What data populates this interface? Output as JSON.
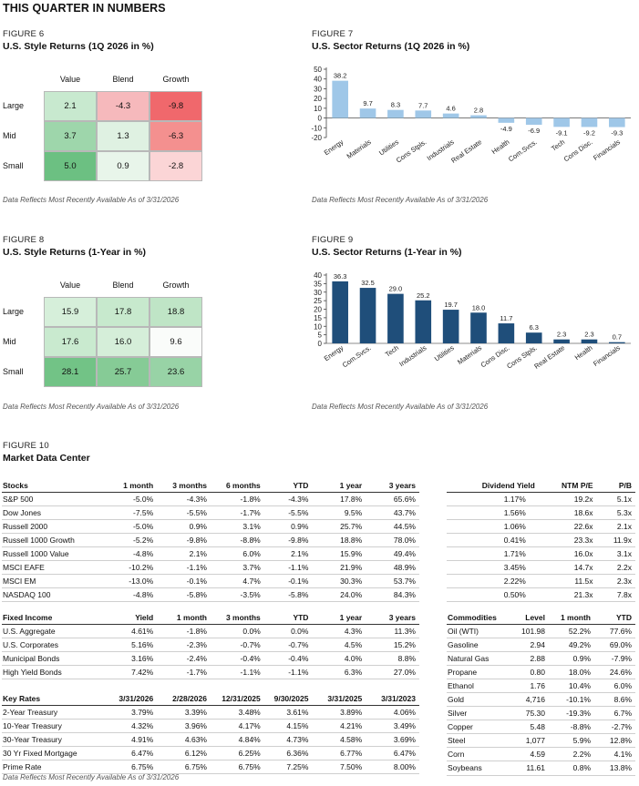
{
  "page_title": "THIS QUARTER IN NUMBERS",
  "source_note": "Data Reflects Most Recently Available As of 3/31/2026",
  "fig6": {
    "label": "FIGURE 6",
    "title": "U.S. Style Returns (1Q 2026 in %)",
    "cols": [
      "Value",
      "Blend",
      "Growth"
    ],
    "rows": [
      "Large",
      "Mid",
      "Small"
    ],
    "cells": [
      [
        "2.1",
        "-4.3",
        "-9.8"
      ],
      [
        "3.7",
        "1.3",
        "-6.3"
      ],
      [
        "5.0",
        "0.9",
        "-2.8"
      ]
    ],
    "colors": [
      [
        "#c8e9cf",
        "#f6b9bc",
        "#f0686c"
      ],
      [
        "#9ed6ab",
        "#dff1e2",
        "#f4908f"
      ],
      [
        "#6cc082",
        "#e8f5ea",
        "#fbd5d6"
      ]
    ]
  },
  "fig8": {
    "label": "FIGURE 8",
    "title": "U.S. Style Returns (1-Year in %)",
    "cols": [
      "Value",
      "Blend",
      "Growth"
    ],
    "rows": [
      "Large",
      "Mid",
      "Small"
    ],
    "cells": [
      [
        "15.9",
        "17.8",
        "18.8"
      ],
      [
        "17.6",
        "16.0",
        "9.6"
      ],
      [
        "28.1",
        "25.7",
        "23.6"
      ]
    ],
    "colors": [
      [
        "#d6efda",
        "#c7e9cd",
        "#bfe5c6"
      ],
      [
        "#c9eacf",
        "#d5eed9",
        "#fafcfa"
      ],
      [
        "#72c386",
        "#86cb96",
        "#98d3a6"
      ]
    ]
  },
  "fig7": {
    "label": "FIGURE 7",
    "title": "U.S. Sector Returns (1Q 2026 in %)",
    "color": "#9fc7e8",
    "chart_data": {
      "type": "bar",
      "categories": [
        "Energy",
        "Materials",
        "Utilities",
        "Cons Stpls.",
        "Industrials",
        "Real Estate",
        "Health",
        "Com.Svcs.",
        "Tech",
        "Cons Disc.",
        "Financials"
      ],
      "values": [
        38.2,
        9.7,
        8.3,
        7.7,
        4.6,
        2.8,
        -4.9,
        -6.9,
        -9.1,
        -9.2,
        -9.3
      ],
      "labels": [
        "38.2",
        "9.7",
        "8.3",
        "7.7",
        "4.6",
        "2.8",
        "-4.9",
        "-6.9",
        "-9.1",
        "-9.2",
        "-9.3"
      ],
      "yticks": [
        "50",
        "40",
        "30",
        "20",
        "10",
        "0",
        "-10",
        "-20"
      ],
      "ylim": [
        -20,
        50
      ]
    }
  },
  "fig9": {
    "label": "FIGURE 9",
    "title": "U.S. Sector Returns (1-Year in %)",
    "color": "#1f4e7a",
    "chart_data": {
      "type": "bar",
      "categories": [
        "Energy",
        "Com.Svcs.",
        "Tech",
        "Industrials",
        "Utilities",
        "Materials",
        "Cons Disc.",
        "Cons Stpls.",
        "Real Estate",
        "Health",
        "Financials"
      ],
      "values": [
        36.3,
        32.5,
        29.0,
        25.2,
        19.7,
        18.0,
        11.7,
        6.3,
        2.3,
        2.3,
        0.7
      ],
      "labels": [
        "36.3",
        "32.5",
        "29.0",
        "25.2",
        "19.7",
        "18.0",
        "11.7",
        "6.3",
        "2.3",
        "2.3",
        "0.7"
      ],
      "yticks": [
        "40",
        "35",
        "30",
        "25",
        "20",
        "15",
        "10",
        "5",
        "0"
      ],
      "ylim": [
        0,
        40
      ]
    }
  },
  "fig10": {
    "label": "FIGURE 10",
    "title": "Market Data Center"
  },
  "stocks": {
    "headers": [
      "Stocks",
      "1 month",
      "3 months",
      "6 months",
      "YTD",
      "1 year",
      "3 years"
    ],
    "rows": [
      [
        "S&P 500",
        "-5.0%",
        "-4.3%",
        "-1.8%",
        "-4.3%",
        "17.8%",
        "65.6%"
      ],
      [
        "Dow Jones",
        "-7.5%",
        "-5.5%",
        "-1.7%",
        "-5.5%",
        "9.5%",
        "43.7%"
      ],
      [
        "Russell 2000",
        "-5.0%",
        "0.9%",
        "3.1%",
        "0.9%",
        "25.7%",
        "44.5%"
      ],
      [
        "Russell 1000 Growth",
        "-5.2%",
        "-9.8%",
        "-8.8%",
        "-9.8%",
        "18.8%",
        "78.0%"
      ],
      [
        "Russell 1000 Value",
        "-4.8%",
        "2.1%",
        "6.0%",
        "2.1%",
        "15.9%",
        "49.4%"
      ],
      [
        "MSCI EAFE",
        "-10.2%",
        "-1.1%",
        "3.7%",
        "-1.1%",
        "21.9%",
        "48.9%"
      ],
      [
        "MSCI EM",
        "-13.0%",
        "-0.1%",
        "4.7%",
        "-0.1%",
        "30.3%",
        "53.7%"
      ],
      [
        "NASDAQ 100",
        "-4.8%",
        "-5.8%",
        "-3.5%",
        "-5.8%",
        "24.0%",
        "84.3%"
      ]
    ]
  },
  "valuation": {
    "headers": [
      "Dividend Yield",
      "NTM P/E",
      "P/B"
    ],
    "rows": [
      [
        "1.17%",
        "19.2x",
        "5.1x"
      ],
      [
        "1.56%",
        "18.6x",
        "5.3x"
      ],
      [
        "1.06%",
        "22.6x",
        "2.1x"
      ],
      [
        "0.41%",
        "23.3x",
        "11.9x"
      ],
      [
        "1.71%",
        "16.0x",
        "3.1x"
      ],
      [
        "3.45%",
        "14.7x",
        "2.2x"
      ],
      [
        "2.22%",
        "11.5x",
        "2.3x"
      ],
      [
        "0.50%",
        "21.3x",
        "7.8x"
      ]
    ]
  },
  "fixed_income": {
    "headers": [
      "Fixed Income",
      "Yield",
      "1 month",
      "3 months",
      "YTD",
      "1 year",
      "3 years"
    ],
    "rows": [
      [
        "U.S. Aggregate",
        "4.61%",
        "-1.8%",
        "0.0%",
        "0.0%",
        "4.3%",
        "11.3%"
      ],
      [
        "U.S. Corporates",
        "5.16%",
        "-2.3%",
        "-0.7%",
        "-0.7%",
        "4.5%",
        "15.2%"
      ],
      [
        "Municipal Bonds",
        "3.16%",
        "-2.4%",
        "-0.4%",
        "-0.4%",
        "4.0%",
        "8.8%"
      ],
      [
        "High Yield Bonds",
        "7.42%",
        "-1.7%",
        "-1.1%",
        "-1.1%",
        "6.3%",
        "27.0%"
      ]
    ]
  },
  "key_rates": {
    "headers": [
      "Key Rates",
      "3/31/2026",
      "2/28/2026",
      "12/31/2025",
      "9/30/2025",
      "3/31/2025",
      "3/31/2023"
    ],
    "rows": [
      [
        "2-Year Treasury",
        "3.79%",
        "3.39%",
        "3.48%",
        "3.61%",
        "3.89%",
        "4.06%"
      ],
      [
        "10-Year Treasury",
        "4.32%",
        "3.96%",
        "4.17%",
        "4.15%",
        "4.21%",
        "3.49%"
      ],
      [
        "30-Year Treasury",
        "4.91%",
        "4.63%",
        "4.84%",
        "4.73%",
        "4.58%",
        "3.69%"
      ],
      [
        "30 Yr Fixed Mortgage",
        "6.47%",
        "6.12%",
        "6.25%",
        "6.36%",
        "6.77%",
        "6.47%"
      ],
      [
        "Prime Rate",
        "6.75%",
        "6.75%",
        "6.75%",
        "7.25%",
        "7.50%",
        "8.00%"
      ]
    ]
  },
  "commodities": {
    "headers": [
      "Commodities",
      "Level",
      "1 month",
      "YTD"
    ],
    "rows": [
      [
        "Oil (WTI)",
        "101.98",
        "52.2%",
        "77.6%"
      ],
      [
        "Gasoline",
        "2.94",
        "49.2%",
        "69.0%"
      ],
      [
        "Natural Gas",
        "2.88",
        "0.9%",
        "-7.9%"
      ],
      [
        "Propane",
        "0.80",
        "18.0%",
        "24.6%"
      ],
      [
        "Ethanol",
        "1.76",
        "10.4%",
        "6.0%"
      ],
      [
        "Gold",
        "4,716",
        "-10.1%",
        "8.6%"
      ],
      [
        "Silver",
        "75.30",
        "-19.3%",
        "6.7%"
      ],
      [
        "Copper",
        "5.48",
        "-8.8%",
        "-2.7%"
      ],
      [
        "Steel",
        "1,077",
        "5.9%",
        "12.8%"
      ],
      [
        "Corn",
        "4.59",
        "2.2%",
        "4.1%"
      ],
      [
        "Soybeans",
        "11.61",
        "0.8%",
        "13.8%"
      ]
    ]
  }
}
